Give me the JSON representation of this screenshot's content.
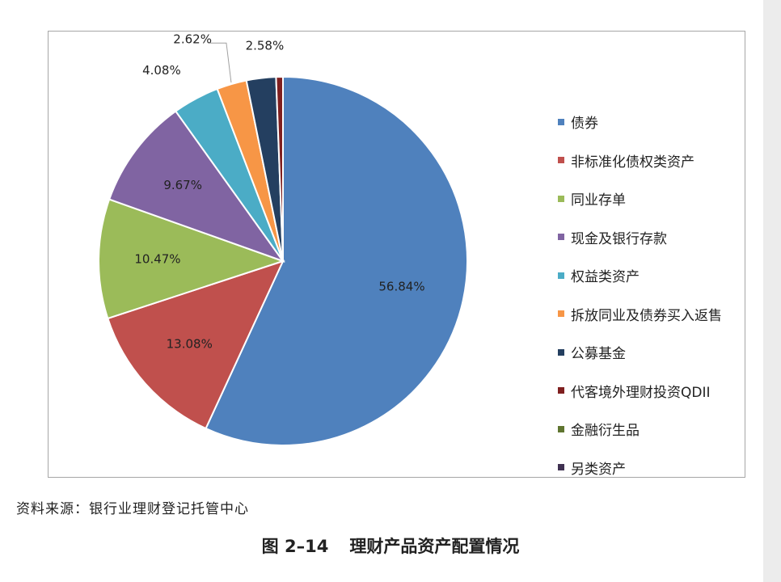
{
  "chart_data": {
    "type": "pie",
    "slices": [
      {
        "label": "债券",
        "value": 56.84,
        "value_label": "56.84%",
        "color": "#4f81bd"
      },
      {
        "label": "非标准化债权类资产",
        "value": 13.08,
        "value_label": "13.08%",
        "color": "#c0504d"
      },
      {
        "label": "同业存单",
        "value": 10.47,
        "value_label": "10.47%",
        "color": "#9bbb59"
      },
      {
        "label": "现金及银行存款",
        "value": 9.67,
        "value_label": "9.67%",
        "color": "#8064a2"
      },
      {
        "label": "权益类资产",
        "value": 4.08,
        "value_label": "4.08%",
        "color": "#4bacc6"
      },
      {
        "label": "拆放同业及债券买入返售",
        "value": 2.62,
        "value_label": "2.62%",
        "color": "#f79646"
      },
      {
        "label": "公募基金",
        "value": 2.58,
        "value_label": "2.58%",
        "color": "#243f60"
      },
      {
        "label": "代客境外理财投资QDII",
        "value": 0.6,
        "value_label": "",
        "color": "#7f1f1f"
      },
      {
        "label": "金融衍生品",
        "value": 0.0,
        "value_label": "",
        "color": "#5f7530"
      },
      {
        "label": "另类资产",
        "value": 0.0,
        "value_label": "",
        "color": "#3f3151"
      }
    ],
    "legend_position": "right"
  },
  "source_note": "资料来源：银行业理财登记托管中心",
  "caption": {
    "number": "图 2–14",
    "title": "理财产品资产配置情况"
  }
}
